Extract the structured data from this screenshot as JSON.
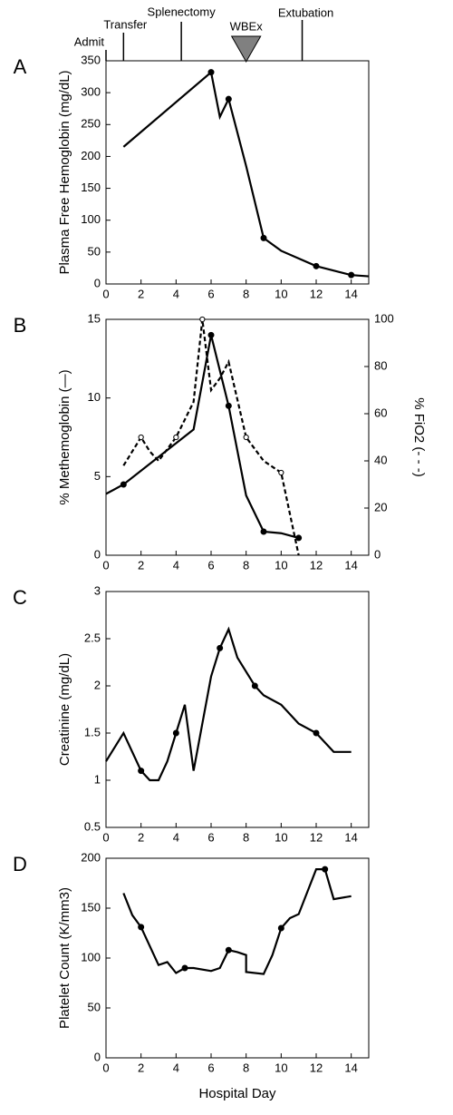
{
  "chart_data": [
    {
      "type": "line",
      "label": "A",
      "ylabel": "Plasma Free Hemoglobin (mg/dL)",
      "annotations": [
        {
          "text": "Admit",
          "x": 0
        },
        {
          "text": "Transfer",
          "x": 1
        },
        {
          "text": "Splenectomy",
          "x": 4.3
        },
        {
          "text": "WBEx",
          "x": 8
        },
        {
          "text": "Extubation",
          "x": 11.2
        }
      ],
      "xlim": [
        0,
        15
      ],
      "xticks": [
        0,
        2,
        4,
        6,
        8,
        10,
        12,
        14
      ],
      "ylim": [
        0,
        350
      ],
      "yticks": [
        0,
        50,
        100,
        150,
        200,
        250,
        300,
        350
      ],
      "series": [
        {
          "color": "#000000",
          "dash": false,
          "marker": "filled",
          "x": [
            1,
            6,
            6.5,
            7,
            8,
            9,
            10,
            12,
            14,
            15
          ],
          "values": [
            215,
            332,
            262,
            290,
            185,
            72,
            52,
            28,
            14,
            12
          ],
          "marked": [
            false,
            true,
            false,
            true,
            false,
            true,
            false,
            true,
            true,
            false
          ]
        }
      ]
    },
    {
      "type": "line",
      "label": "B",
      "ylabel": "% Methemoglobin (—)",
      "y2label": "% FiO2 (- - -)",
      "xlim": [
        0,
        15
      ],
      "xticks": [
        0,
        2,
        4,
        6,
        8,
        10,
        12,
        14
      ],
      "ylim": [
        0,
        15
      ],
      "yticks": [
        0,
        5,
        10,
        15
      ],
      "y2lim": [
        0,
        100
      ],
      "y2ticks": [
        0,
        20,
        40,
        60,
        80,
        100
      ],
      "series": [
        {
          "color": "#000000",
          "dash": false,
          "marker": "filled",
          "x": [
            0,
            1,
            5,
            6,
            7,
            8,
            9,
            10,
            11
          ],
          "values": [
            3.9,
            4.5,
            8,
            14,
            9.5,
            3.8,
            1.5,
            1.4,
            1.1
          ],
          "marked": [
            false,
            true,
            false,
            true,
            true,
            false,
            true,
            false,
            true
          ]
        },
        {
          "color": "#000000",
          "dash": true,
          "marker": "open",
          "axis": "y2",
          "x": [
            1,
            2,
            2.5,
            3,
            4,
            5,
            5.5,
            6,
            6.5,
            7,
            8,
            9,
            10,
            11
          ],
          "values": [
            38,
            50,
            44,
            40,
            50,
            65,
            100,
            70,
            75,
            82,
            50,
            40,
            35,
            0
          ],
          "marked": [
            false,
            true,
            false,
            false,
            true,
            false,
            true,
            false,
            false,
            false,
            true,
            false,
            true,
            false
          ]
        }
      ]
    },
    {
      "type": "line",
      "label": "C",
      "ylabel": "Creatinine (mg/dL)",
      "xlim": [
        0,
        15
      ],
      "xticks": [
        0,
        2,
        4,
        6,
        8,
        10,
        12,
        14
      ],
      "ylim": [
        0.5,
        3
      ],
      "yticks": [
        0.5,
        1,
        1.5,
        2,
        2.5,
        3
      ],
      "series": [
        {
          "color": "#000000",
          "dash": false,
          "marker": "filled",
          "x": [
            0,
            1,
            2,
            2.5,
            3,
            3.5,
            4,
            4.5,
            5,
            6,
            6.5,
            7,
            7.5,
            8.5,
            9,
            10,
            11,
            12,
            13,
            14
          ],
          "values": [
            1.2,
            1.5,
            1.1,
            1.0,
            1.0,
            1.2,
            1.5,
            1.8,
            1.1,
            2.1,
            2.4,
            2.6,
            2.3,
            2.0,
            1.9,
            1.8,
            1.6,
            1.5,
            1.3,
            1.3
          ],
          "marked": [
            false,
            false,
            true,
            false,
            false,
            false,
            true,
            false,
            false,
            false,
            true,
            false,
            false,
            true,
            false,
            false,
            false,
            true,
            false,
            false
          ]
        }
      ]
    },
    {
      "type": "line",
      "label": "D",
      "ylabel": "Platelet Count (K/mm3)",
      "xlabel": "Hospital Day",
      "xlim": [
        0,
        15
      ],
      "xticks": [
        0,
        2,
        4,
        6,
        8,
        10,
        12,
        14
      ],
      "ylim": [
        0,
        200
      ],
      "yticks": [
        0,
        50,
        100,
        150,
        200
      ],
      "series": [
        {
          "color": "#000000",
          "dash": false,
          "marker": "filled",
          "x": [
            1,
            1.5,
            2,
            3,
            3.5,
            4,
            4.5,
            5,
            6,
            6.5,
            7,
            7.5,
            8,
            8,
            9,
            9.5,
            10,
            10.5,
            11,
            12,
            12.5,
            13,
            14
          ],
          "values": [
            165,
            143,
            131,
            93,
            96,
            85,
            90,
            90,
            87,
            90,
            108,
            106,
            103,
            86,
            84,
            103,
            130,
            140,
            144,
            189,
            189,
            159,
            162
          ],
          "marked": [
            false,
            false,
            true,
            false,
            false,
            false,
            true,
            false,
            false,
            false,
            true,
            false,
            false,
            false,
            false,
            false,
            true,
            false,
            false,
            false,
            true,
            false,
            false
          ]
        }
      ]
    }
  ]
}
